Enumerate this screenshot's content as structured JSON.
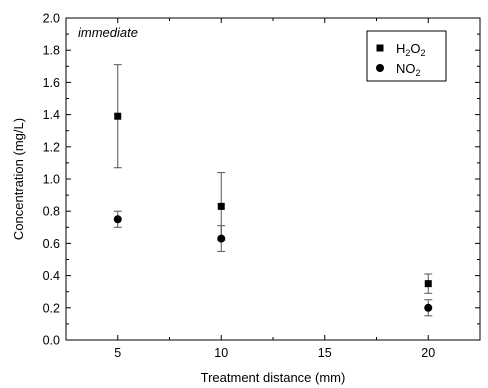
{
  "chart_data": {
    "type": "scatter",
    "xlabel": "Treatment distance (mm)",
    "ylabel": "Concentration (mg/L)",
    "xlim": [
      2.5,
      22.5
    ],
    "ylim": [
      0.0,
      2.0
    ],
    "xticks": [
      5,
      10,
      15,
      20
    ],
    "yticks": [
      0.0,
      0.2,
      0.4,
      0.6,
      0.8,
      1.0,
      1.2,
      1.4,
      1.6,
      1.8,
      2.0
    ],
    "annotation": "immediate",
    "legend_position": "top-right",
    "grid": false,
    "series": [
      {
        "name": "H2O2",
        "legend_main": [
          "H",
          "O"
        ],
        "legend_sub": [
          "2",
          "2"
        ],
        "marker": "square",
        "x": [
          5,
          10,
          20
        ],
        "y": [
          1.39,
          0.83,
          0.35
        ],
        "err": [
          0.32,
          0.21,
          0.06
        ]
      },
      {
        "name": "NO2",
        "legend_main": [
          "NO"
        ],
        "legend_sub": [
          "2"
        ],
        "marker": "circle",
        "x": [
          5,
          10,
          20
        ],
        "y": [
          0.75,
          0.63,
          0.2
        ],
        "err": [
          0.05,
          0.08,
          0.05
        ]
      }
    ]
  }
}
